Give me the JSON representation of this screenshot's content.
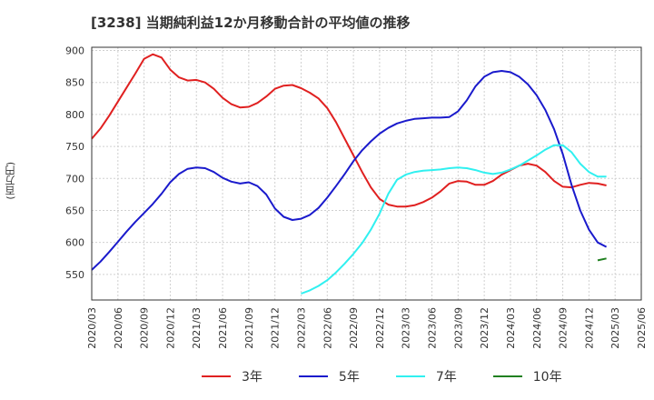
{
  "chart_data": {
    "type": "line",
    "title": "[3238]  当期純利益12か月移動合計の平均値の推移",
    "ylabel": "(百万円)",
    "xlabel": "",
    "ylim": [
      510,
      905
    ],
    "yticks": [
      550,
      600,
      650,
      700,
      750,
      800,
      850,
      900
    ],
    "x_tick_labels": [
      "2020/03",
      "2020/06",
      "2020/09",
      "2020/12",
      "2021/03",
      "2021/06",
      "2021/09",
      "2021/12",
      "2022/03",
      "2022/06",
      "2022/09",
      "2022/12",
      "2023/03",
      "2023/06",
      "2023/09",
      "2023/12",
      "2024/03",
      "2024/06",
      "2024/09",
      "2024/12",
      "2025/03",
      "2025/06"
    ],
    "x_start": "2020/03",
    "series": [
      {
        "name": "3年",
        "color": "#e02020",
        "start_index": 0,
        "values": [
          762,
          778,
          798,
          820,
          842,
          864,
          887,
          894,
          889,
          870,
          858,
          853,
          854,
          850,
          840,
          826,
          816,
          811,
          812,
          818,
          828,
          840,
          845,
          846,
          841,
          834,
          825,
          810,
          788,
          762,
          736,
          710,
          686,
          668,
          659,
          656,
          656,
          658,
          663,
          670,
          680,
          692,
          696,
          695,
          690,
          690,
          696,
          706,
          713,
          720,
          723,
          720,
          710,
          696,
          687,
          686,
          690,
          693,
          692,
          689
        ]
      },
      {
        "name": "5年",
        "color": "#1a1acc",
        "start_index": 0,
        "values": [
          557,
          570,
          585,
          601,
          617,
          632,
          646,
          660,
          676,
          694,
          707,
          715,
          717,
          716,
          710,
          701,
          695,
          692,
          694,
          688,
          675,
          653,
          640,
          635,
          637,
          643,
          654,
          670,
          688,
          707,
          727,
          744,
          758,
          770,
          779,
          786,
          790,
          793,
          794,
          795,
          795,
          796,
          805,
          822,
          844,
          859,
          866,
          868,
          866,
          859,
          847,
          830,
          807,
          777,
          738,
          690,
          650,
          620,
          600,
          593
        ]
      },
      {
        "name": "7年",
        "color": "#30f0f0",
        "start_index": 24,
        "values": [
          520,
          525,
          532,
          541,
          553,
          567,
          582,
          599,
          620,
          645,
          676,
          698,
          706,
          710,
          712,
          713,
          714,
          716,
          717,
          716,
          713,
          709,
          707,
          709,
          714,
          720,
          728,
          736,
          745,
          752,
          752,
          741,
          723,
          710,
          703,
          703
        ]
      },
      {
        "name": "10年",
        "color": "#208020",
        "start_index": 58,
        "values": [
          572,
          575
        ]
      }
    ]
  }
}
